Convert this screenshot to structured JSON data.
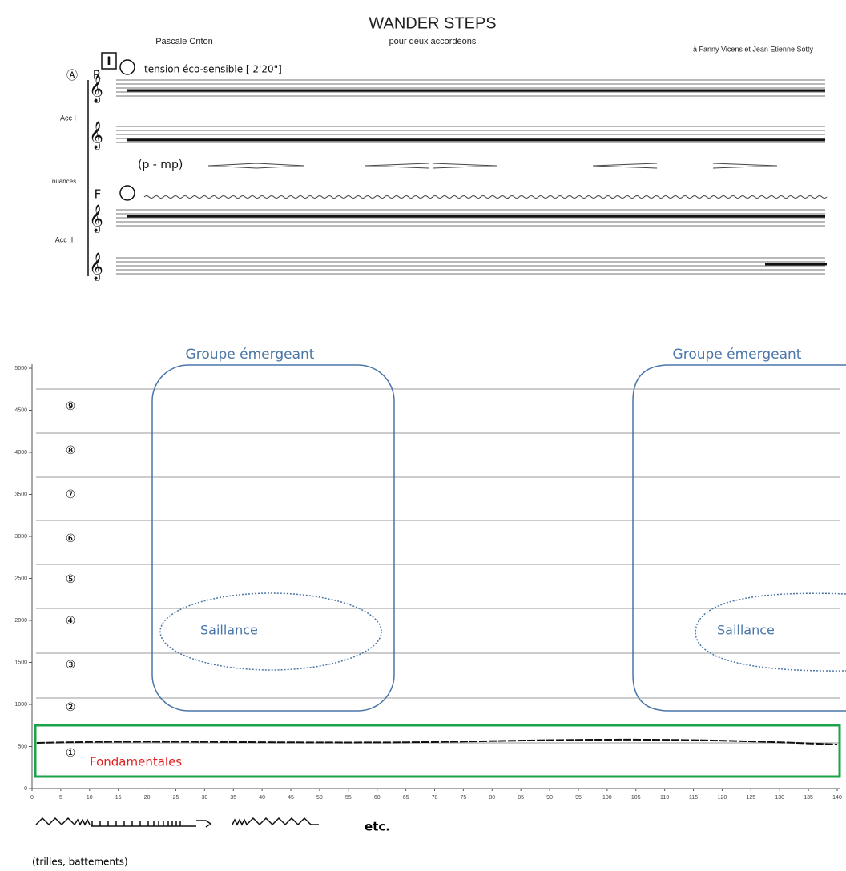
{
  "score": {
    "title": "WANDER STEPS",
    "subtitle": "pour deux accordéons",
    "composer": "Pascale Criton",
    "dedication": "à Fanny Vicens et Jean Etienne Sotty",
    "rehearsal": "Ⓐ",
    "section": "I",
    "tempo": "tension éco-sensible [ 2'20\"]",
    "register_top": "R",
    "register_bottom": "F",
    "dynamics": "(p - mp)",
    "staff_labels": [
      "Acc I",
      "nuances",
      "Acc II"
    ]
  },
  "spectrogram": {
    "xlim": [
      0,
      140
    ],
    "ylim": [
      0,
      5000
    ],
    "xticks": [
      0,
      5,
      10,
      15,
      20,
      25,
      30,
      35,
      40,
      45,
      50,
      55,
      60,
      65,
      70,
      75,
      80,
      85,
      90,
      95,
      100,
      105,
      110,
      115,
      120,
      125,
      130,
      135,
      140
    ],
    "yticks": [
      0,
      500,
      1000,
      1500,
      2000,
      2500,
      3000,
      3500,
      4000,
      4500,
      5000
    ],
    "partials": [
      "①",
      "②",
      "③",
      "④",
      "⑤",
      "⑥",
      "⑦",
      "⑧",
      "⑨"
    ],
    "group_labels": [
      "Groupe émergeant",
      "Groupe émergeant"
    ],
    "salience_labels": [
      "Saillance",
      "Saillance"
    ],
    "fundamental_label": "Fondamentales"
  },
  "legend": {
    "end": "etc.",
    "caption": "(trilles, battements)"
  }
}
